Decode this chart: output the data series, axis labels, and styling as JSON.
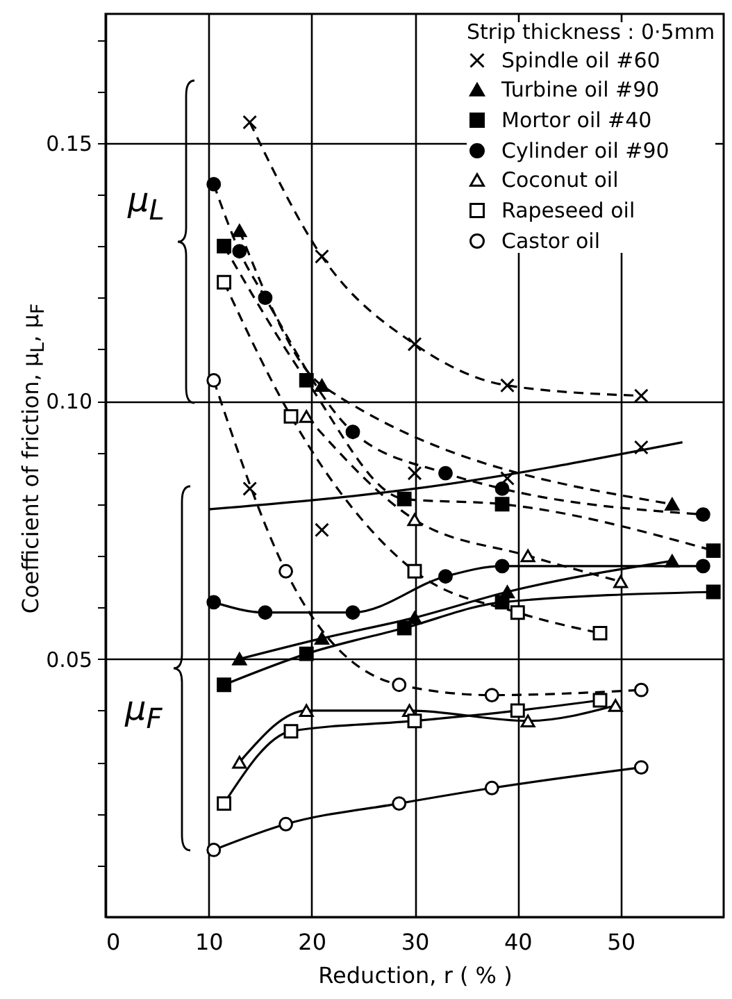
{
  "chart_data": {
    "type": "scatter",
    "xlabel": "Reduction, r ( % )",
    "ylabel": "Coefficient of friction, μ$_{L}$, μ$_{F}$",
    "legend_title": "Strip thickness : 0·5mm",
    "legend": "top right",
    "grid": true,
    "xlim": [
      0,
      60
    ],
    "ylim": [
      0,
      0.175
    ],
    "xticks": [
      0,
      10,
      20,
      30,
      40,
      50
    ],
    "yticks": [
      {
        "value": 0.01,
        "label": null
      },
      {
        "value": 0.02,
        "label": null
      },
      {
        "value": 0.03,
        "label": null
      },
      {
        "value": 0.04,
        "label": null
      },
      0.05,
      {
        "value": 0.06,
        "label": null
      },
      {
        "value": 0.07,
        "label": null
      },
      {
        "value": 0.08,
        "label": null
      },
      {
        "value": 0.09,
        "label": null
      },
      {
        "value": 0.1,
        "label": "0.10"
      },
      {
        "value": 0.11,
        "label": null
      },
      {
        "value": 0.12,
        "label": null
      },
      {
        "value": 0.13,
        "label": null
      },
      {
        "value": 0.14,
        "label": null
      },
      0.15,
      {
        "value": 0.16,
        "label": null
      },
      {
        "value": 0.17,
        "label": null
      }
    ],
    "annotations": [
      "μ$_{L}$",
      "μ$_{F}$"
    ],
    "series": [
      {
        "type": "line",
        "color": "#000000",
        "marker": "none",
        "line_style": "dashed",
        "x": [
          14,
          21,
          30,
          39,
          52
        ],
        "values": [
          0.154,
          0.128,
          0.111,
          0.103,
          0.101
        ]
      },
      {
        "type": "line",
        "color": "#000000",
        "marker": "none",
        "line_style": "dashed",
        "x": [
          13,
          21,
          55
        ],
        "values": [
          0.133,
          0.103,
          0.08
        ]
      },
      {
        "type": "line",
        "color": "#000000",
        "marker": "none",
        "line_style": "dashed",
        "x": [
          11.5,
          19.5,
          29,
          38.5,
          59
        ],
        "values": [
          0.13,
          0.104,
          0.081,
          0.08,
          0.071
        ]
      },
      {
        "type": "line",
        "color": "#000000",
        "marker": "none",
        "line_style": "dashed",
        "x": [
          10.5,
          13,
          15.5,
          24,
          33,
          38.5,
          58
        ],
        "values": [
          0.142,
          0.129,
          0.12,
          0.094,
          0.086,
          0.083,
          0.078
        ]
      },
      {
        "type": "line",
        "color": "#000000",
        "marker": "none",
        "line_style": "dashed",
        "x": [
          19.5,
          30,
          41,
          50
        ],
        "values": [
          0.097,
          0.077,
          0.07,
          0.065
        ]
      },
      {
        "type": "line",
        "color": "#000000",
        "marker": "none",
        "line_style": "dashed",
        "x": [
          11.5,
          18,
          30,
          40,
          48
        ],
        "values": [
          0.123,
          0.097,
          0.067,
          0.059,
          0.055
        ]
      },
      {
        "type": "line",
        "color": "#000000",
        "marker": "none",
        "line_style": "dashed",
        "x": [
          10.5,
          17.5,
          28.5,
          37.5,
          52
        ],
        "values": [
          0.104,
          0.067,
          0.045,
          0.043,
          0.044
        ]
      },
      {
        "type": "line",
        "color": "#000000",
        "marker": "none",
        "line_style": "solid",
        "x": [
          10,
          30,
          56
        ],
        "values": [
          0.079,
          0.083,
          0.092
        ]
      },
      {
        "type": "line",
        "color": "#000000",
        "marker": "none",
        "line_style": "solid",
        "x": [
          13,
          21,
          30,
          39,
          55
        ],
        "values": [
          0.05,
          0.054,
          0.058,
          0.063,
          0.069
        ]
      },
      {
        "type": "line",
        "color": "#000000",
        "marker": "none",
        "line_style": "solid",
        "x": [
          11.5,
          19.5,
          29,
          38.5,
          59
        ],
        "values": [
          0.045,
          0.051,
          0.056,
          0.061,
          0.063
        ]
      },
      {
        "type": "line",
        "color": "#000000",
        "marker": "none",
        "line_style": "solid",
        "x": [
          10.5,
          15.5,
          24,
          33,
          38.5,
          58
        ],
        "values": [
          0.061,
          0.059,
          0.059,
          0.066,
          0.068,
          0.068
        ]
      },
      {
        "type": "line",
        "color": "#000000",
        "marker": "none",
        "line_style": "solid",
        "x": [
          13,
          19.5,
          29.5,
          41,
          49.5
        ],
        "values": [
          0.03,
          0.04,
          0.04,
          0.038,
          0.041
        ]
      },
      {
        "type": "line",
        "color": "#000000",
        "marker": "none",
        "line_style": "solid",
        "x": [
          11.5,
          18,
          30,
          40,
          48
        ],
        "values": [
          0.022,
          0.036,
          0.038,
          0.04,
          0.042
        ]
      },
      {
        "type": "line",
        "color": "#000000",
        "marker": "none",
        "line_style": "solid",
        "x": [
          10.5,
          17.5,
          28.5,
          37.5,
          52
        ],
        "values": [
          0.013,
          0.018,
          0.022,
          0.025,
          0.029
        ]
      },
      {
        "name": "Spindle oil #60",
        "color": "#000000",
        "marker": "cross",
        "x": [
          14,
          21,
          30,
          39,
          52
        ],
        "values": [
          0.154,
          0.128,
          0.111,
          0.103,
          0.101
        ]
      },
      {
        "name": "Turbine oil #90",
        "color": "#000000",
        "marker": "triangle",
        "x": [
          13,
          21,
          55
        ],
        "values": [
          0.133,
          0.103,
          0.08
        ]
      },
      {
        "name": "Mortor oil #40",
        "color": "#000000",
        "marker": "square",
        "x": [
          11.5,
          19.5,
          29,
          38.5,
          59
        ],
        "values": [
          0.13,
          0.104,
          0.081,
          0.08,
          0.071
        ]
      },
      {
        "name": "Cylinder oil #90",
        "color": "#000000",
        "marker": "circle",
        "x": [
          10.5,
          13,
          15.5,
          24,
          33,
          38.5,
          58
        ],
        "values": [
          0.142,
          0.129,
          0.12,
          0.094,
          0.086,
          0.083,
          0.078
        ]
      },
      {
        "name": "Coconut oil",
        "color": "#ffffff",
        "marker": "triangle",
        "x": [
          19.5,
          30,
          41,
          50
        ],
        "values": [
          0.097,
          0.077,
          0.07,
          0.065
        ]
      },
      {
        "name": "Rapeseed oil",
        "color": "#ffffff",
        "marker": "square",
        "x": [
          11.5,
          18,
          30,
          40,
          48
        ],
        "values": [
          0.123,
          0.097,
          0.067,
          0.059,
          0.055
        ]
      },
      {
        "name": "Castor oil",
        "color": "#ffffff",
        "marker": "circle",
        "x": [
          10.5,
          17.5,
          28.5,
          37.5,
          52
        ],
        "values": [
          0.104,
          0.067,
          0.045,
          0.043,
          0.044
        ]
      },
      {
        "color": "#000000",
        "marker": "cross",
        "x": [
          14,
          21,
          30,
          39,
          52
        ],
        "values": [
          0.083,
          0.075,
          0.086,
          0.085,
          0.091
        ]
      },
      {
        "color": "#000000",
        "marker": "triangle",
        "x": [
          13,
          21,
          30,
          39,
          55
        ],
        "values": [
          0.05,
          0.054,
          0.058,
          0.063,
          0.069
        ]
      },
      {
        "color": "#000000",
        "marker": "square",
        "x": [
          11.5,
          19.5,
          29,
          38.5,
          59
        ],
        "values": [
          0.045,
          0.051,
          0.056,
          0.061,
          0.063
        ]
      },
      {
        "color": "#000000",
        "marker": "circle",
        "x": [
          10.5,
          15.5,
          24,
          33,
          38.5,
          58
        ],
        "values": [
          0.061,
          0.059,
          0.059,
          0.066,
          0.068,
          0.068
        ]
      },
      {
        "color": "#ffffff",
        "marker": "triangle",
        "x": [
          13,
          19.5,
          29.5,
          41,
          49.5
        ],
        "values": [
          0.03,
          0.04,
          0.04,
          0.038,
          0.041
        ]
      },
      {
        "color": "#ffffff",
        "marker": "square",
        "x": [
          11.5,
          18,
          30,
          40,
          48
        ],
        "values": [
          0.022,
          0.036,
          0.038,
          0.04,
          0.042
        ]
      },
      {
        "color": "#ffffff",
        "marker": "circle",
        "x": [
          10.5,
          17.5,
          28.5,
          37.5,
          52
        ],
        "values": [
          0.013,
          0.018,
          0.022,
          0.025,
          0.029
        ]
      }
    ]
  }
}
